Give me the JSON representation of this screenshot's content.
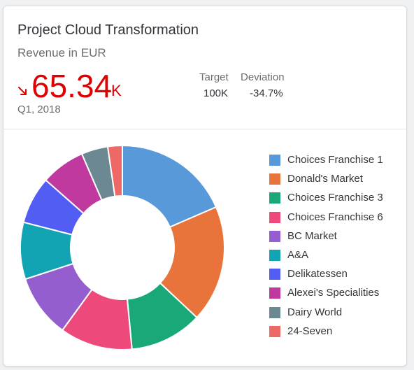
{
  "card": {
    "title": "Project Cloud Transformation",
    "subtitle": "Revenue in EUR",
    "kpi": {
      "value": "65.34",
      "scale": "K",
      "trend": "down",
      "trend_icon": "trend-down-arrow-icon",
      "color": "#e00000"
    },
    "period": "Q1, 2018",
    "comparison": {
      "target_label": "Target",
      "target_value": "100K",
      "deviation_label": "Deviation",
      "deviation_value": "-34.7%"
    }
  },
  "chart_data": {
    "type": "pie",
    "variant": "donut",
    "legend_position": "right",
    "series": [
      {
        "name": "Choices Franchise 1",
        "value": 18.5,
        "color": "#5899da"
      },
      {
        "name": "Donald's Market",
        "value": 18.5,
        "color": "#e8743b"
      },
      {
        "name": "Choices Franchise 3",
        "value": 11.5,
        "color": "#19a979"
      },
      {
        "name": "Choices Franchise 6",
        "value": 11.5,
        "color": "#ed4a7b"
      },
      {
        "name": "BC Market",
        "value": 10.0,
        "color": "#945ecf"
      },
      {
        "name": "A&A",
        "value": 9.0,
        "color": "#13a4b4"
      },
      {
        "name": "Delikatessen",
        "value": 7.5,
        "color": "#525df4"
      },
      {
        "name": "Alexei's Specialities",
        "value": 7.0,
        "color": "#bf399e"
      },
      {
        "name": "Dairy World",
        "value": 4.2,
        "color": "#6c8893"
      },
      {
        "name": "24-Seven",
        "value": 2.3,
        "color": "#ee6868"
      }
    ]
  }
}
